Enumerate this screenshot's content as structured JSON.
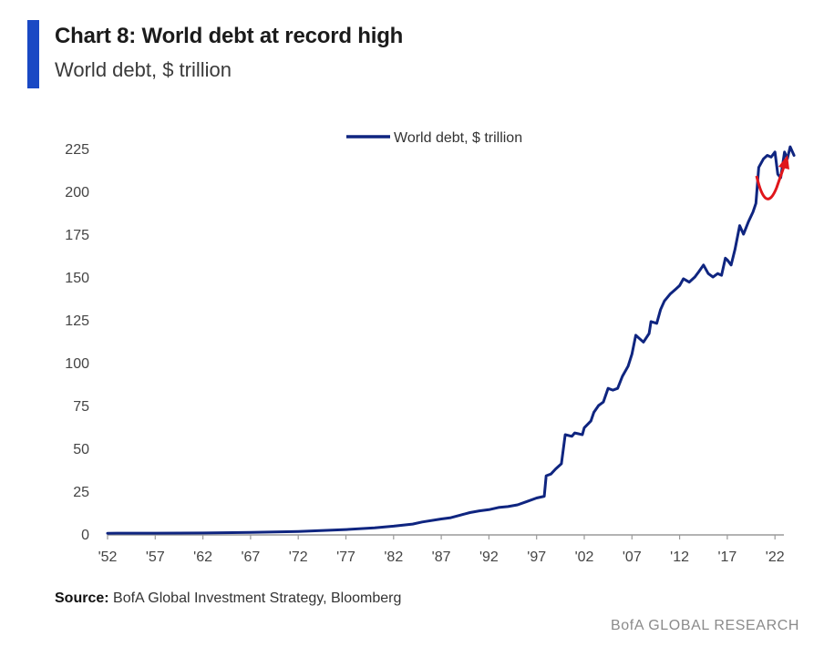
{
  "header": {
    "title": "Chart 8: World debt at record high",
    "subtitle": "World debt, $ trillion"
  },
  "footer": {
    "source_label": "Source:",
    "source_text": "BofA Global Investment Strategy, Bloomberg",
    "brand": "BofA GLOBAL RESEARCH"
  },
  "colors": {
    "accent": "#1a49c4",
    "series": "#0f2580",
    "annotation_arrow": "#e0161b"
  },
  "chart_data": {
    "type": "line",
    "legend": {
      "position": "top-center",
      "entries": [
        "World debt, $ trillion"
      ]
    },
    "x_tick_labels": [
      "'52",
      "'57",
      "'62",
      "'67",
      "'72",
      "'77",
      "'82",
      "'87",
      "'92",
      "'97",
      "'02",
      "'07",
      "'12",
      "'17",
      "'22"
    ],
    "x_tick_years": [
      1952,
      1957,
      1962,
      1967,
      1972,
      1977,
      1982,
      1987,
      1992,
      1997,
      2002,
      2007,
      2012,
      2017,
      2022
    ],
    "y_tick_labels": [
      "0",
      "25",
      "50",
      "75",
      "100",
      "125",
      "150",
      "175",
      "200",
      "225"
    ],
    "ylim": [
      0,
      225
    ],
    "xlim": [
      1952,
      2024
    ],
    "grid": false,
    "annotation": {
      "type": "curved-arrow",
      "color": "red",
      "description": "rebound after dip"
    },
    "series": [
      {
        "name": "World debt, $ trillion",
        "points": [
          [
            1952,
            0.4
          ],
          [
            1957,
            0.5
          ],
          [
            1962,
            0.6
          ],
          [
            1967,
            0.9
          ],
          [
            1972,
            1.5
          ],
          [
            1977,
            2.6
          ],
          [
            1980,
            3.6
          ],
          [
            1982,
            4.6
          ],
          [
            1984,
            5.8
          ],
          [
            1985,
            7.0
          ],
          [
            1987,
            8.8
          ],
          [
            1988,
            9.5
          ],
          [
            1989,
            11
          ],
          [
            1990,
            12.5
          ],
          [
            1991,
            13.5
          ],
          [
            1992,
            14.2
          ],
          [
            1993,
            15.5
          ],
          [
            1994,
            16
          ],
          [
            1995,
            17
          ],
          [
            1996,
            19
          ],
          [
            1997,
            21
          ],
          [
            1997.8,
            22
          ],
          [
            1998,
            34
          ],
          [
            1998.5,
            35
          ],
          [
            1999,
            38
          ],
          [
            1999.6,
            41
          ],
          [
            2000,
            58
          ],
          [
            2000.7,
            57
          ],
          [
            2001,
            59
          ],
          [
            2001.8,
            58
          ],
          [
            2002,
            62
          ],
          [
            2002.7,
            66
          ],
          [
            2003,
            71
          ],
          [
            2003.5,
            75
          ],
          [
            2004,
            77
          ],
          [
            2004.5,
            85
          ],
          [
            2005,
            84
          ],
          [
            2005.5,
            85
          ],
          [
            2006,
            92
          ],
          [
            2006.6,
            98
          ],
          [
            2007,
            105
          ],
          [
            2007.4,
            116
          ],
          [
            2007.8,
            114
          ],
          [
            2008.2,
            112
          ],
          [
            2008.8,
            117
          ],
          [
            2009,
            124
          ],
          [
            2009.6,
            123
          ],
          [
            2010,
            131
          ],
          [
            2010.4,
            136
          ],
          [
            2011,
            140
          ],
          [
            2011.6,
            143
          ],
          [
            2012,
            145
          ],
          [
            2012.4,
            149
          ],
          [
            2013,
            147
          ],
          [
            2013.6,
            150
          ],
          [
            2014,
            153
          ],
          [
            2014.5,
            157
          ],
          [
            2015,
            152
          ],
          [
            2015.5,
            150
          ],
          [
            2016,
            152
          ],
          [
            2016.4,
            151
          ],
          [
            2016.8,
            161
          ],
          [
            2017,
            160
          ],
          [
            2017.4,
            157
          ],
          [
            2017.8,
            166
          ],
          [
            2018.3,
            180
          ],
          [
            2018.7,
            175
          ],
          [
            2019.2,
            182
          ],
          [
            2019.7,
            188
          ],
          [
            2020,
            193
          ],
          [
            2020.3,
            214
          ],
          [
            2020.8,
            219
          ],
          [
            2021.2,
            221
          ],
          [
            2021.6,
            220
          ],
          [
            2022,
            223
          ],
          [
            2022.3,
            210
          ],
          [
            2022.6,
            208
          ],
          [
            2023,
            223
          ],
          [
            2023.3,
            219
          ],
          [
            2023.6,
            226
          ],
          [
            2024,
            221
          ]
        ]
      }
    ]
  }
}
